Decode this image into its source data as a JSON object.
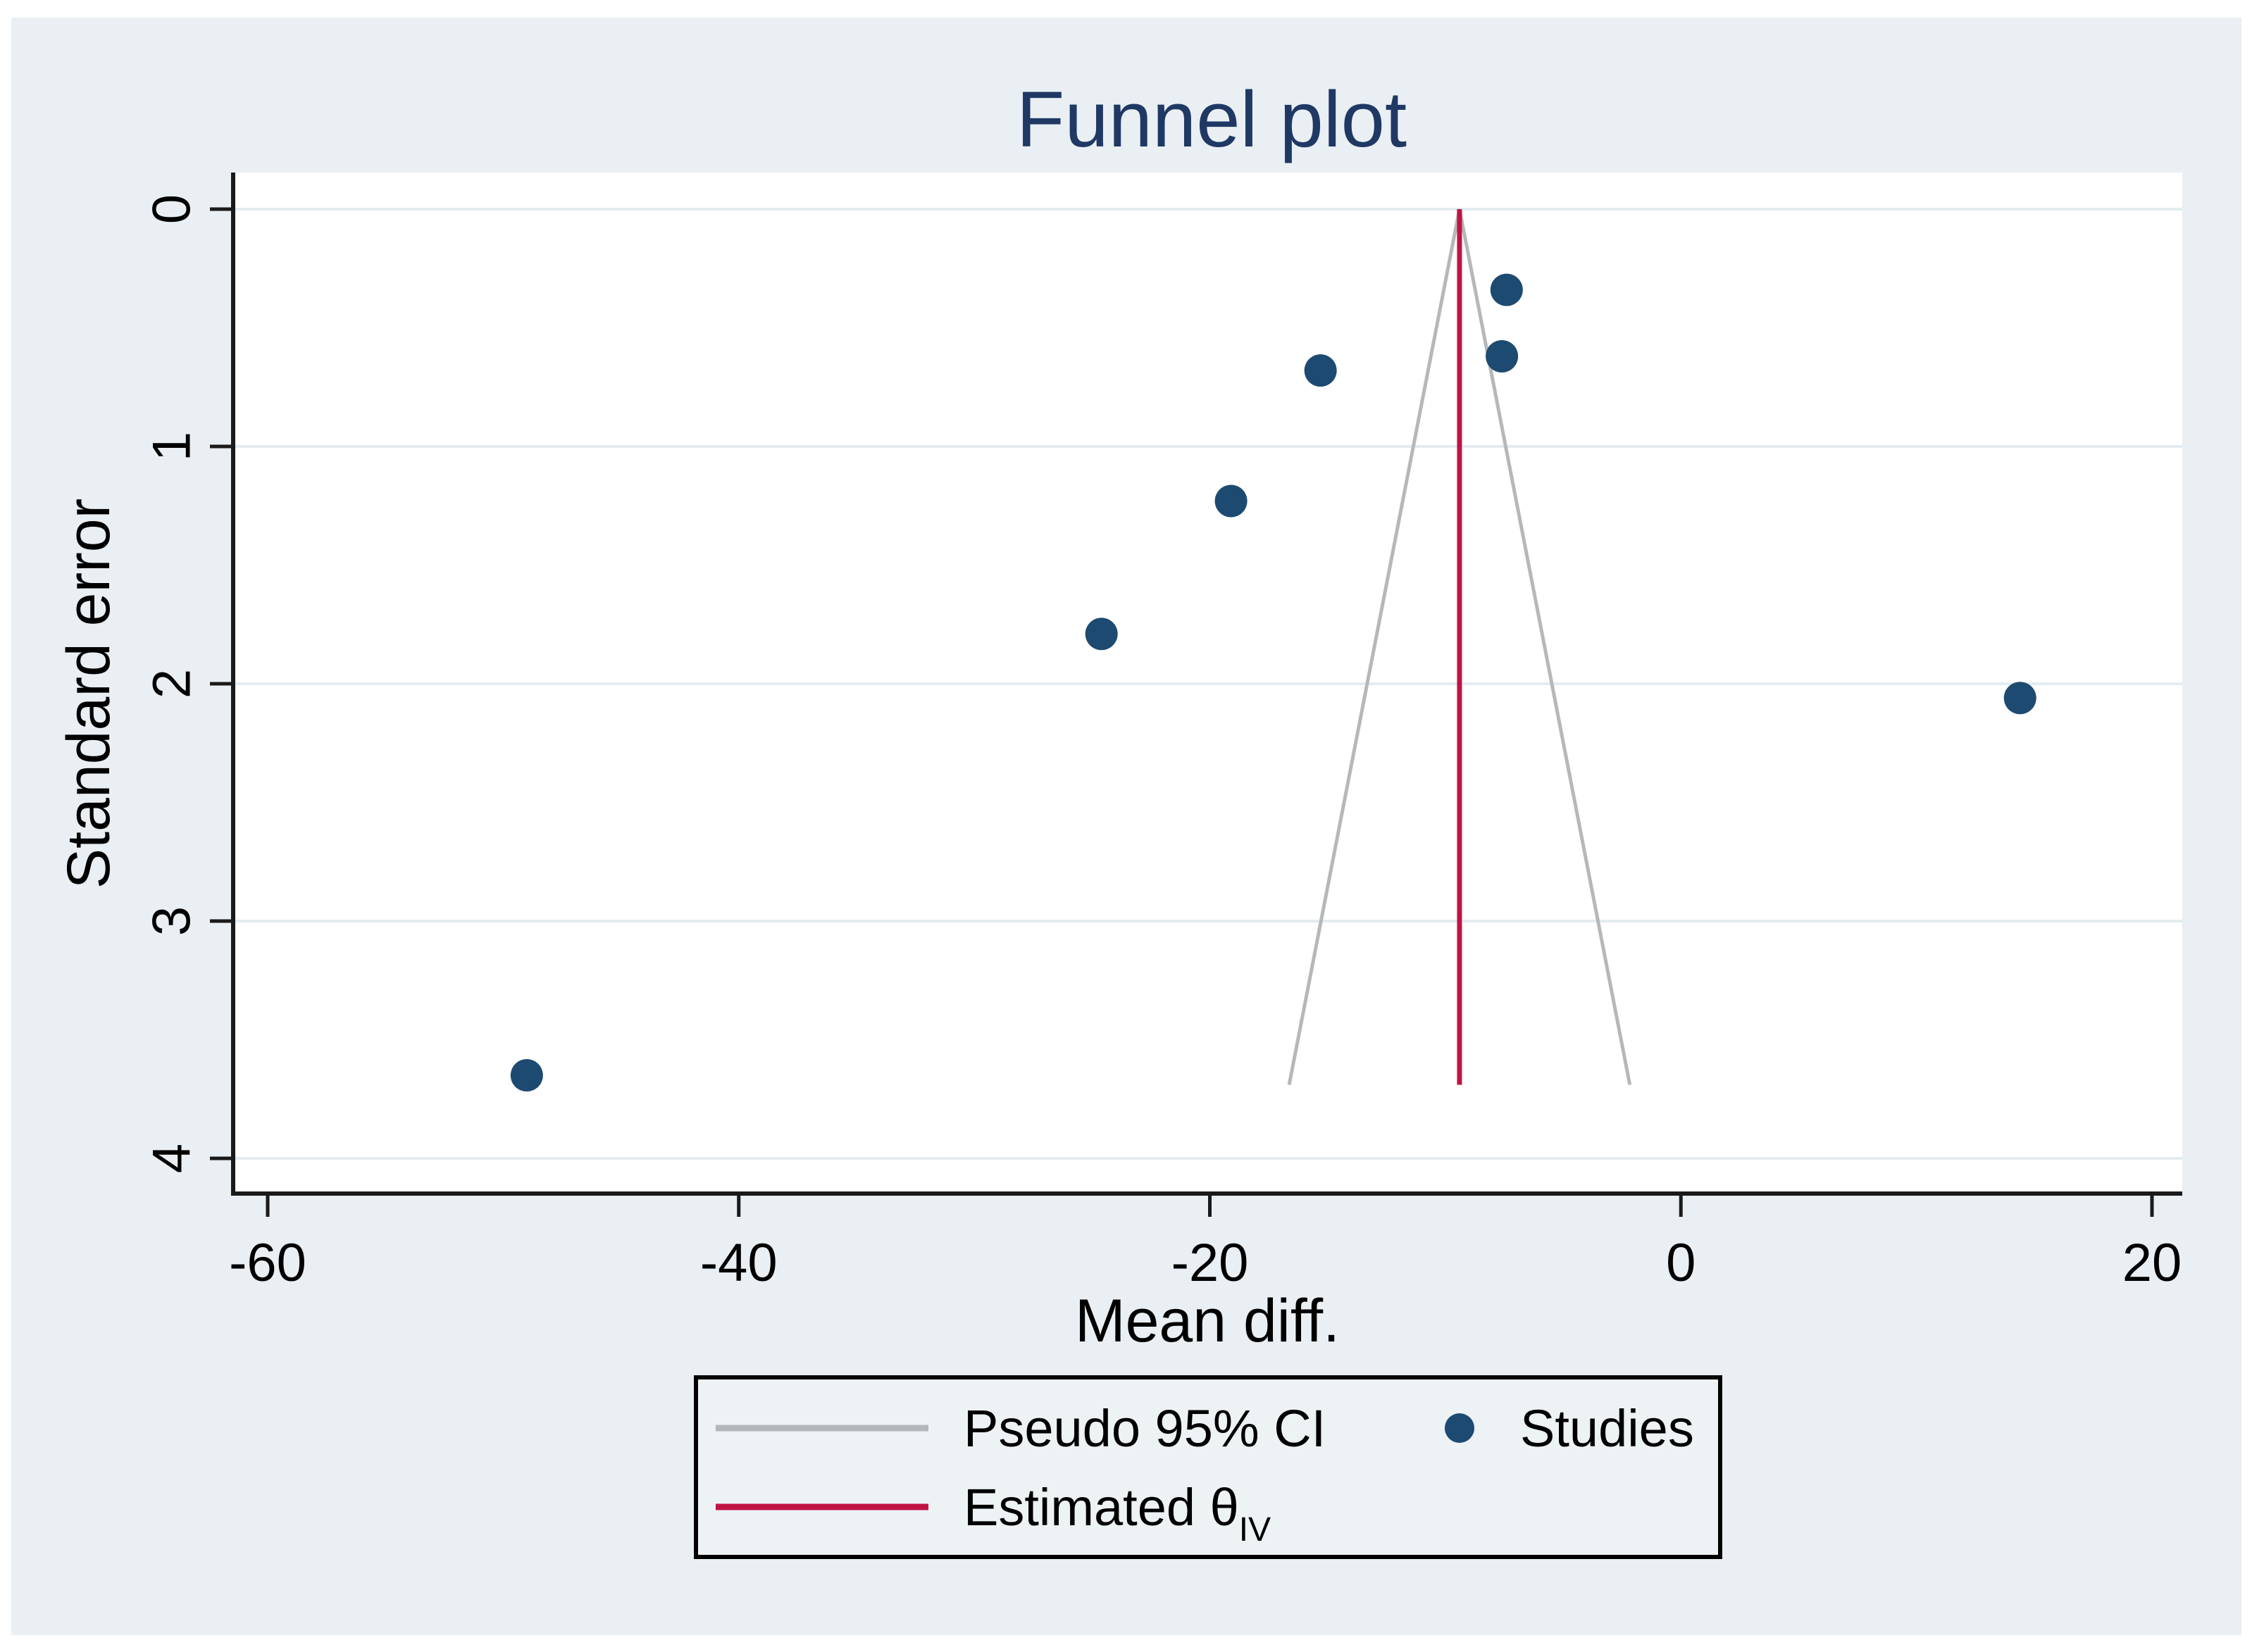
{
  "page": {
    "outer_background": "#ffffff",
    "canvas_background": "#e9eff3",
    "plot_background": "#ffffff",
    "gridline_color": "#e3ecf1",
    "axis_color": "#1a1a1a",
    "text_color": "#000000",
    "title_color": "#1f3864"
  },
  "chart_data": {
    "type": "scatter",
    "title": "Funnel plot",
    "xlabel": "Mean diff.",
    "ylabel": "Standard error",
    "x_ticks": [
      -60,
      -40,
      -20,
      0,
      20
    ],
    "y_ticks": [
      0,
      1,
      2,
      3,
      4
    ],
    "xlim": [
      -61.5,
      21.3
    ],
    "se_lim": [
      -0.15,
      4.18
    ],
    "y_axis_orientation": "inverted (standard error 0 at top, increases downward)",
    "grid": "horizontal gridlines at each y tick, no vertical gridlines",
    "series": [
      {
        "name": "Studies",
        "type": "scatter",
        "color": "#1d4a71",
        "marker_radius_px": 23,
        "points": [
          {
            "mean_diff": -7.4,
            "se": 0.34
          },
          {
            "mean_diff": -7.6,
            "se": 0.62
          },
          {
            "mean_diff": -15.3,
            "se": 0.68
          },
          {
            "mean_diff": -19.1,
            "se": 1.23
          },
          {
            "mean_diff": -24.6,
            "se": 1.79
          },
          {
            "mean_diff": 14.4,
            "se": 2.06
          },
          {
            "mean_diff": -49.0,
            "se": 3.65
          }
        ]
      },
      {
        "name": "Estimated theta IV (vertical line)",
        "type": "vline",
        "color": "#c11244",
        "theta": -9.4,
        "se_from": 0,
        "se_to": 3.69
      },
      {
        "name": "Pseudo 95% CI (funnel bounds)",
        "type": "funnel",
        "color": "#b5b8ba",
        "z": 1.96,
        "apex_x": -9.4,
        "se_from": 0,
        "se_to": 3.69
      }
    ],
    "legend": {
      "position": "bottom-center",
      "border_color": "#000000",
      "background": "#edf2f5",
      "items": [
        {
          "label": "Pseudo 95% CI",
          "marker": "gray-line"
        },
        {
          "label": "Studies",
          "marker": "navy-dot"
        },
        {
          "label": "Estimated θ",
          "sub": "IV",
          "marker": "red-line"
        }
      ]
    }
  }
}
